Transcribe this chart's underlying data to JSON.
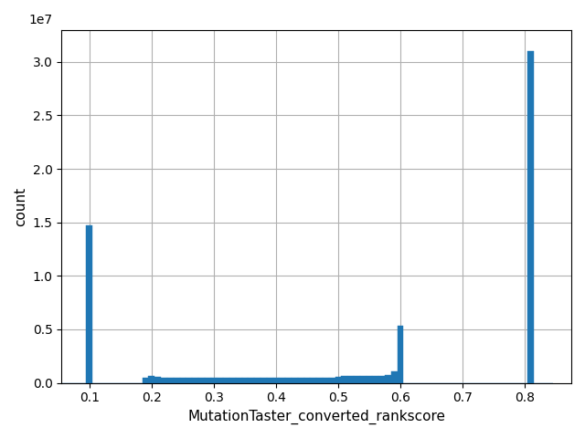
{
  "xlabel": "MutationTaster_converted_rankscore",
  "ylabel": "count",
  "bar_color": "#1f77b4",
  "xlim": [
    0.055,
    0.875
  ],
  "ylim": [
    0,
    33000000.0
  ],
  "bin_edges": [
    0.055,
    0.065,
    0.075,
    0.085,
    0.095,
    0.105,
    0.115,
    0.125,
    0.135,
    0.145,
    0.155,
    0.165,
    0.175,
    0.185,
    0.195,
    0.205,
    0.215,
    0.225,
    0.235,
    0.245,
    0.255,
    0.265,
    0.275,
    0.285,
    0.295,
    0.305,
    0.315,
    0.325,
    0.335,
    0.345,
    0.355,
    0.365,
    0.375,
    0.385,
    0.395,
    0.405,
    0.415,
    0.425,
    0.435,
    0.445,
    0.455,
    0.465,
    0.475,
    0.485,
    0.495,
    0.505,
    0.515,
    0.525,
    0.535,
    0.545,
    0.555,
    0.565,
    0.575,
    0.585,
    0.595,
    0.605,
    0.615,
    0.625,
    0.635,
    0.645,
    0.655,
    0.665,
    0.675,
    0.685,
    0.695,
    0.705,
    0.715,
    0.725,
    0.735,
    0.745,
    0.755,
    0.765,
    0.775,
    0.785,
    0.795,
    0.805,
    0.815,
    0.825,
    0.835
  ],
  "counts": [
    0,
    0,
    0,
    0,
    14700000,
    0,
    0,
    0,
    0,
    0,
    0,
    0,
    0,
    500000,
    620000,
    540000,
    490000,
    490000,
    490000,
    490000,
    480000,
    450000,
    470000,
    470000,
    480000,
    480000,
    480000,
    470000,
    470000,
    470000,
    470000,
    470000,
    470000,
    470000,
    470000,
    470000,
    470000,
    470000,
    470000,
    470000,
    470000,
    470000,
    470000,
    470000,
    560000,
    620000,
    660000,
    630000,
    630000,
    660000,
    660000,
    680000,
    720000,
    1100000,
    5300000,
    0,
    0,
    0,
    0,
    0,
    0,
    0,
    0,
    0,
    0,
    0,
    0,
    0,
    0,
    0,
    0,
    0,
    0,
    0,
    0,
    31000000,
    0,
    0,
    0
  ],
  "yticks": [
    0,
    5000000,
    10000000,
    15000000,
    20000000,
    25000000,
    30000000
  ],
  "ytick_labels": [
    "0.0",
    "0.5",
    "1.0",
    "1.5",
    "2.0",
    "2.5",
    "3.0"
  ],
  "xticks": [
    0.1,
    0.2,
    0.3,
    0.4,
    0.5,
    0.6,
    0.7,
    0.8
  ],
  "xtick_labels": [
    "0.1",
    "0.2",
    "0.3",
    "0.4",
    "0.5",
    "0.6",
    "0.7",
    "0.8"
  ],
  "offset_text": "1e7",
  "grid_color": "#b0b0b0",
  "grid_linewidth": 0.8,
  "bg_color": "#ffffff",
  "figsize": [
    6.4,
    4.8
  ],
  "dpi": 100
}
